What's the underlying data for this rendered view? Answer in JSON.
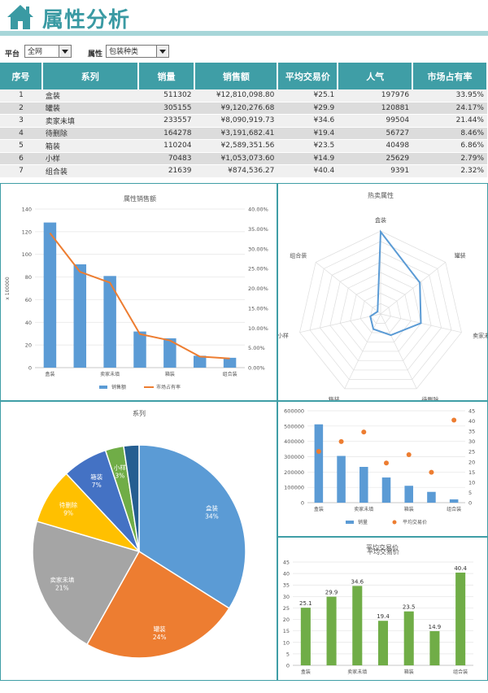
{
  "header": {
    "title": "属性分析"
  },
  "filters": {
    "platform_label": "平台",
    "platform_value": "全网",
    "attr_label": "属性",
    "attr_value": "包装种类"
  },
  "table": {
    "headers": [
      "序号",
      "系列",
      "销量",
      "销售额",
      "平均交易价",
      "人气",
      "市场占有率"
    ],
    "rows": [
      [
        "1",
        "盒装",
        "511302",
        "¥12,810,098.80",
        "¥25.1",
        "197976",
        "33.95%"
      ],
      [
        "2",
        "罐装",
        "305155",
        "¥9,120,276.68",
        "¥29.9",
        "120881",
        "24.17%"
      ],
      [
        "3",
        "卖家未填",
        "233557",
        "¥8,090,919.73",
        "¥34.6",
        "99504",
        "21.44%"
      ],
      [
        "4",
        "待删除",
        "164278",
        "¥3,191,682.41",
        "¥19.4",
        "56727",
        "8.46%"
      ],
      [
        "5",
        "箱装",
        "110204",
        "¥2,589,351.56",
        "¥23.5",
        "40498",
        "6.86%"
      ],
      [
        "6",
        "小样",
        "70483",
        "¥1,053,073.60",
        "¥14.9",
        "25629",
        "2.79%"
      ],
      [
        "7",
        "组合装",
        "21639",
        "¥874,536.27",
        "¥40.4",
        "9391",
        "2.32%"
      ]
    ]
  },
  "chart_data": [
    {
      "type": "bar",
      "title": "属性销售额",
      "categories": [
        "盒装",
        "罐装",
        "卖家未填",
        "待删除",
        "箱装",
        "小样",
        "组合装"
      ],
      "xticks": [
        "盒装",
        "",
        "卖家未填",
        "",
        "箱装",
        "",
        "组合装"
      ],
      "y_unit": "x 100000",
      "ylim": [
        0,
        140
      ],
      "yticks": [
        0,
        20,
        40,
        60,
        80,
        100,
        120,
        140
      ],
      "y2lim": [
        0,
        40
      ],
      "y2ticks": [
        "0.00%",
        "5.00%",
        "10.00%",
        "15.00%",
        "20.00%",
        "25.00%",
        "30.00%",
        "35.00%",
        "40.00%"
      ],
      "series": [
        {
          "name": "销售额",
          "type": "bar",
          "color": "#5b9bd5",
          "values": [
            128.1,
            91.2,
            80.9,
            31.9,
            25.9,
            10.5,
            8.7
          ]
        },
        {
          "name": "市场占有率",
          "type": "line",
          "axis": "right",
          "color": "#ed7d31",
          "values": [
            33.95,
            24.17,
            21.44,
            8.46,
            6.86,
            2.79,
            2.32
          ]
        }
      ],
      "legend": "bottom"
    },
    {
      "type": "radar",
      "title": "热卖属性",
      "categories": [
        "盒装",
        "罐装",
        "卖家未填",
        "待删除",
        "箱装",
        "小样",
        "组合装"
      ],
      "max": 200000,
      "rings": 8,
      "series": [
        {
          "name": "人气",
          "color": "#5b9bd5",
          "values": [
            197976,
            120881,
            99504,
            56727,
            40498,
            25629,
            9391
          ]
        }
      ]
    },
    {
      "type": "pie",
      "title": "系列",
      "slices": [
        {
          "label": "盒装",
          "pct": "34%",
          "value": 33.95,
          "color": "#5b9bd5"
        },
        {
          "label": "罐装",
          "pct": "24%",
          "value": 24.17,
          "color": "#ed7d31"
        },
        {
          "label": "卖家未填",
          "pct": "21%",
          "value": 21.44,
          "color": "#a5a5a5"
        },
        {
          "label": "待删除",
          "pct": "9%",
          "value": 8.46,
          "color": "#ffc000"
        },
        {
          "label": "箱装",
          "pct": "7%",
          "value": 6.86,
          "color": "#4472c4"
        },
        {
          "label": "小样",
          "pct": "3%",
          "value": 2.79,
          "color": "#70ad47"
        },
        {
          "label": "",
          "pct": "",
          "value": 2.32,
          "color": "#255e91"
        }
      ]
    },
    {
      "type": "bar",
      "title": "",
      "categories": [
        "盒装",
        "罐装",
        "卖家未填",
        "待删除",
        "箱装",
        "小样",
        "组合装"
      ],
      "xticks": [
        "盒装",
        "",
        "卖家未填",
        "",
        "箱装",
        "",
        "组合装"
      ],
      "ylim": [
        0,
        600000
      ],
      "yticks": [
        0,
        100000,
        200000,
        300000,
        400000,
        500000,
        600000
      ],
      "y2lim": [
        0,
        45
      ],
      "y2ticks": [
        0,
        5,
        10,
        15,
        20,
        25,
        30,
        35,
        40,
        45
      ],
      "series": [
        {
          "name": "销量",
          "type": "bar",
          "color": "#5b9bd5",
          "values": [
            511302,
            305155,
            233557,
            164278,
            110204,
            70483,
            21639
          ]
        },
        {
          "name": "平均交易价",
          "type": "scatter",
          "axis": "right",
          "color": "#ed7d31",
          "values": [
            25.1,
            29.9,
            34.6,
            19.4,
            23.5,
            14.9,
            40.4
          ]
        }
      ],
      "legend": "bottom"
    },
    {
      "type": "bar",
      "title": "平均交易价",
      "categories": [
        "盒装",
        "罐装",
        "卖家未填",
        "待删除",
        "箱装",
        "小样",
        "组合装"
      ],
      "xticks": [
        "盒装",
        "",
        "卖家未填",
        "",
        "箱装",
        "",
        "组合装"
      ],
      "ylim": [
        0,
        45
      ],
      "yticks": [
        0,
        5,
        10,
        15,
        20,
        25,
        30,
        35,
        40,
        45
      ],
      "series": [
        {
          "name": "平均交易价",
          "type": "bar",
          "color": "#70ad47",
          "values": [
            25.1,
            29.9,
            34.6,
            19.4,
            23.5,
            14.9,
            40.4
          ],
          "labels": [
            "25.1",
            "29.9",
            "34.6",
            "19.4",
            "23.5",
            "14.9",
            "40.4"
          ]
        }
      ]
    }
  ]
}
